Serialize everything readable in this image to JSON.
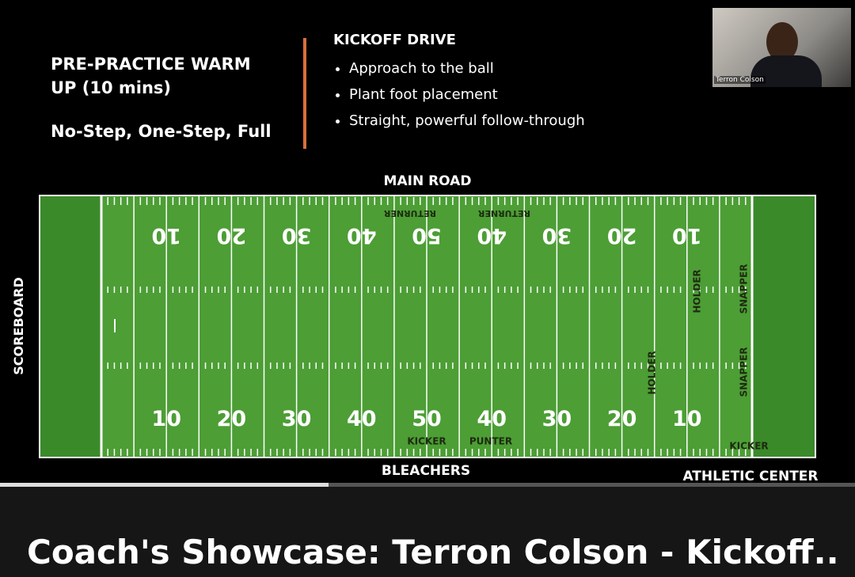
{
  "slide": {
    "warmup_title": "PRE-PRACTICE WARM UP (10 mins)",
    "warmup_subtitle": "No-Step, One-Step, Full",
    "drive_title": "KICKOFF DRIVE",
    "bullets": [
      "Approach to the ball",
      "Plant foot placement",
      "Straight, powerful follow-through"
    ]
  },
  "field": {
    "top_label": "MAIN ROAD",
    "bottom_label": "BLEACHERS",
    "left_label": "SCOREBOARD",
    "corner_label": "ATHLETIC CENTER",
    "yard_numbers": [
      "10",
      "20",
      "30",
      "40",
      "50",
      "40",
      "30",
      "20",
      "10"
    ],
    "position_labels": [
      "RETURNER",
      "RETURNER",
      "HOLDER",
      "SNAPPER",
      "HOLDER",
      "SNAPPER",
      "KICKER",
      "PUNTER",
      "KICKER"
    ]
  },
  "webcam": {
    "name": "Terron Colson"
  },
  "video": {
    "title": "Coach's Showcase: Terron Colson - Kickoff.."
  }
}
